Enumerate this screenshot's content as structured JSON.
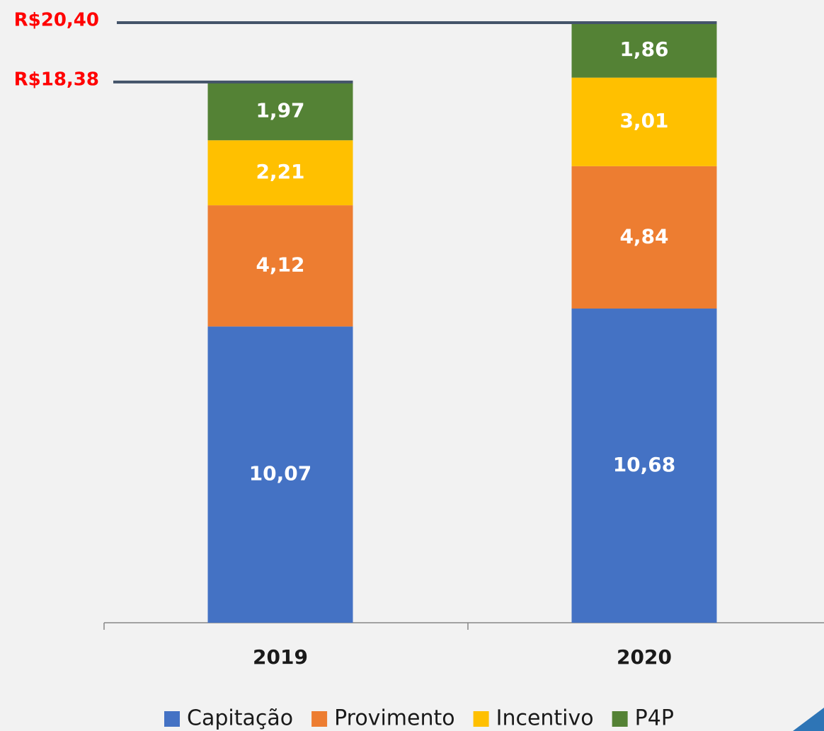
{
  "chart_data": {
    "type": "stacked_bar",
    "categories": [
      "2019",
      "2020"
    ],
    "series": [
      {
        "name": "Capitação",
        "color": "#4472c4",
        "values": [
          10.07,
          10.68
        ],
        "value_labels": [
          "10,07",
          "10,68"
        ]
      },
      {
        "name": "Provimento",
        "color": "#ed7d31",
        "values": [
          4.12,
          4.84
        ],
        "value_labels": [
          "4,12",
          "4,84"
        ]
      },
      {
        "name": "Incentivo",
        "color": "#ffc000",
        "values": [
          2.21,
          3.01
        ],
        "value_labels": [
          "2,21",
          "3,01"
        ]
      },
      {
        "name": "P4P",
        "color": "#548235",
        "values": [
          1.97,
          1.86
        ],
        "value_labels": [
          "1,97",
          "1,86"
        ]
      }
    ],
    "annotations": [
      {
        "label": "R$18,38",
        "value": 18.38
      },
      {
        "label": "R$20,40",
        "value": 20.4
      }
    ],
    "ylim": [
      0,
      21
    ],
    "legend": "bottom"
  }
}
